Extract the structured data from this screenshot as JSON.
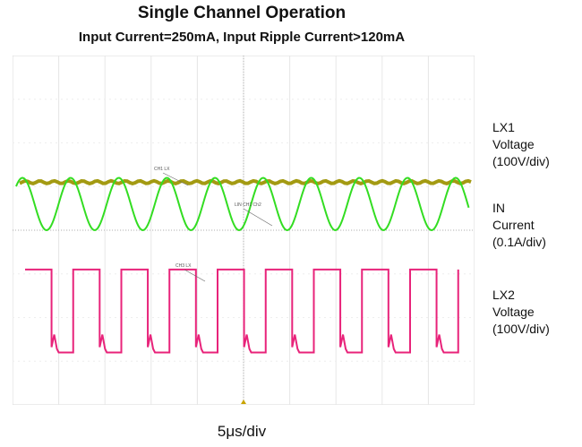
{
  "title": "Single Channel Operation",
  "subtitle": "Input Current=250mA, Input Ripple Current>120mA",
  "xlabel": "5μs/div",
  "chart_data": {
    "type": "line",
    "x_divisions": 10,
    "y_divisions": 8,
    "x_unit": "μs",
    "x_scale_per_div": 5,
    "x": [
      0,
      5,
      10,
      15,
      20,
      25,
      30,
      35,
      40,
      45,
      50
    ],
    "grid": true,
    "series": [
      {
        "name": "LX1",
        "color": "#a39a12",
        "description_label": [
          "LX1",
          "Voltage",
          "(100V/div)"
        ],
        "trace_label": "CH1 LX",
        "kind": "flat",
        "level_div": 2.9
      },
      {
        "name": "IN",
        "color": "#33dd22",
        "description_label": [
          "IN",
          "Current",
          "(0.1A/div)"
        ],
        "trace_label": "LIN CH1 Ch2",
        "kind": "sine",
        "center_div": 3.4,
        "amplitude_div": 0.6,
        "cycles_per_div": 0.96
      },
      {
        "name": "LX2",
        "color": "#e8237a",
        "description_label": [
          "LX2",
          "Voltage",
          "(100V/div)"
        ],
        "trace_label": "CH3 LX",
        "kind": "square",
        "high_div": 4.9,
        "low_div": 6.8,
        "cycles_per_div": 0.96,
        "duty": 0.55
      }
    ]
  }
}
